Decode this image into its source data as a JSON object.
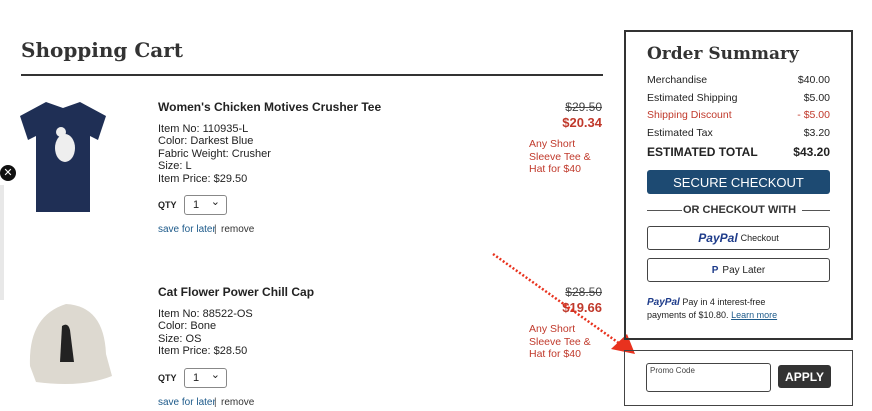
{
  "header": {
    "title": "Shopping Cart"
  },
  "items": [
    {
      "name": "Women's Chicken Motives Crusher Tee",
      "details": [
        "Item No: 110935-L",
        "Color: Darkest Blue",
        "Fabric Weight: Crusher",
        "Size: L",
        "Item Price: $29.50"
      ],
      "qty_label": "QTY",
      "qty": "1",
      "save_link": "save for later",
      "separator": "|",
      "remove_link": "remove",
      "original_price": "$29.50",
      "sale_price": "$20.34",
      "promo": [
        "Any Short",
        "Sleeve Tee &",
        "Hat for $40"
      ]
    },
    {
      "name": "Cat Flower Power Chill Cap",
      "details": [
        "Item No: 88522-OS",
        "Color: Bone",
        "Size: OS",
        "Item Price: $28.50"
      ],
      "qty_label": "QTY",
      "qty": "1",
      "save_link": "save for later",
      "separator": "|",
      "remove_link": "remove",
      "original_price": "$28.50",
      "sale_price": "$19.66",
      "promo": [
        "Any Short",
        "Sleeve Tee &",
        "Hat for $40"
      ]
    }
  ],
  "summary": {
    "title": "Order Summary",
    "rows": [
      {
        "label": "Merchandise",
        "value": "$40.00",
        "highlight": false
      },
      {
        "label": "Estimated Shipping",
        "value": "$5.00",
        "highlight": false
      },
      {
        "label": "Shipping Discount",
        "value": "- $5.00",
        "highlight": true
      },
      {
        "label": "Estimated Tax",
        "value": "$3.20",
        "highlight": false
      }
    ],
    "total": {
      "label": "ESTIMATED TOTAL",
      "value": "$43.20"
    },
    "checkout_button": "SECURE CHECKOUT",
    "divider": "OR CHECKOUT WITH",
    "paypal_logo": "PayPal",
    "paypal_button": "Checkout",
    "paylater_button": "Pay Later",
    "paypal_message": "Pay in 4 interest-free payments of $10.80.",
    "learn_more": "Learn more"
  },
  "promo": {
    "placeholder": "Promo Code",
    "apply": "APPLY"
  }
}
